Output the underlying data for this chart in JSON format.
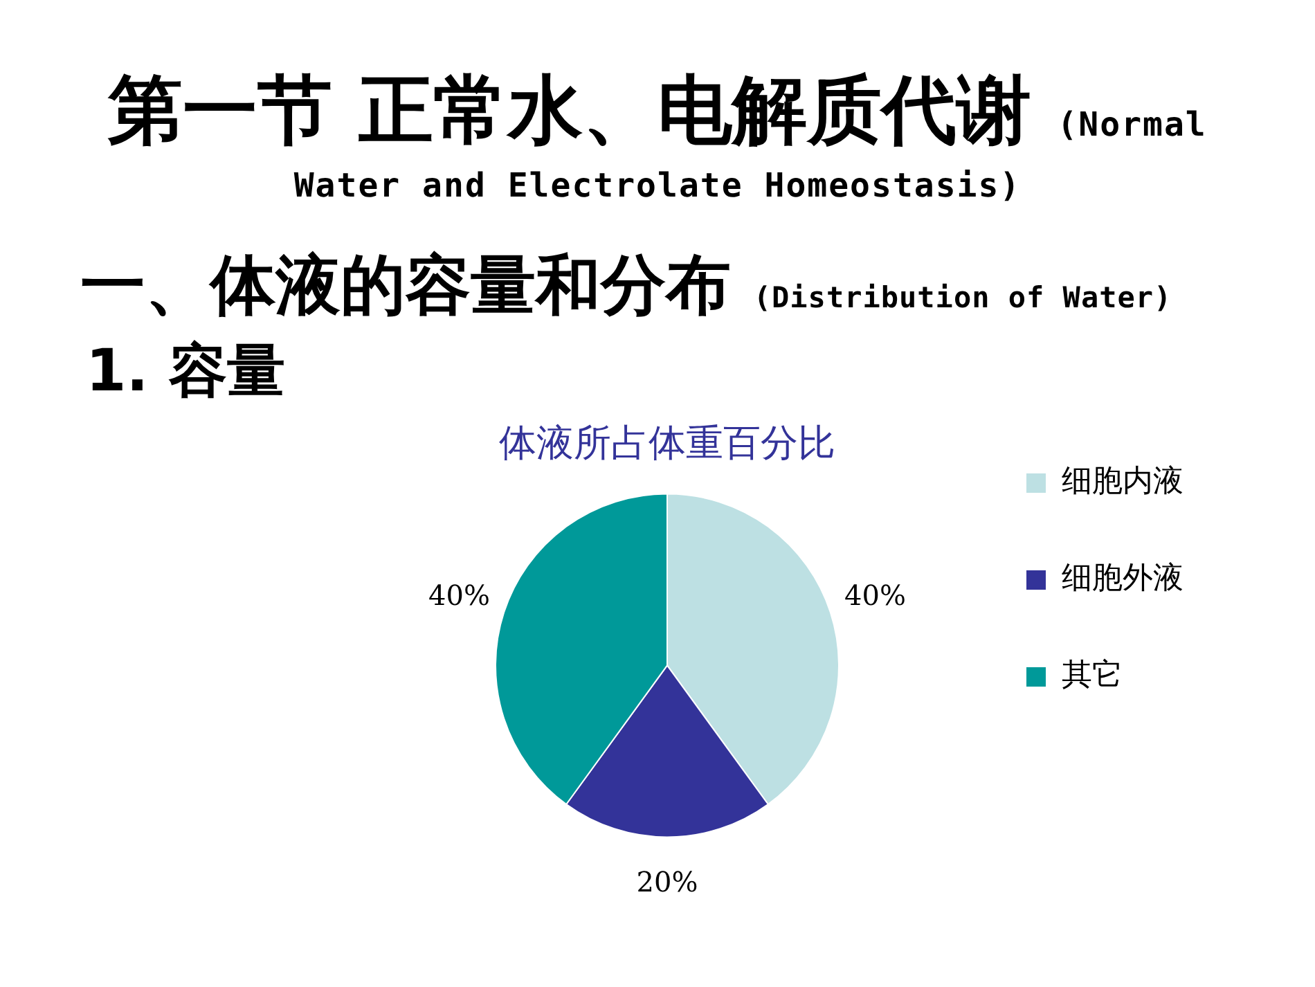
{
  "chart_data": {
    "type": "pie",
    "title": "体液所占体重百分比",
    "annotations": [
      "第一节 正常水、电解质代谢 (Normal Water and Electrolate Homeostasis)",
      "一、体液的容量和分布 (Distribution of Water)",
      "1. 容量"
    ],
    "categories": [
      "细胞内液",
      "细胞外液",
      "其它"
    ],
    "values": [
      40,
      20,
      40
    ],
    "colors": [
      "#bde0e3",
      "#333399",
      "#009999"
    ],
    "value_labels": [
      "40%",
      "20%",
      "40%"
    ],
    "legend": "right"
  }
}
